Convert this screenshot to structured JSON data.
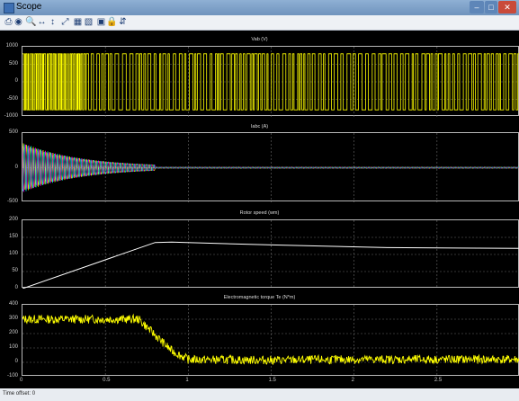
{
  "window": {
    "title": "Scope"
  },
  "toolbar": {
    "icons": [
      "print-icon",
      "parameters-icon",
      "zoom-in-icon",
      "zoom-x-icon",
      "zoom-y-icon",
      "autoscale-icon",
      "save-axes-icon",
      "restore-axes-icon",
      "floating-scope-icon",
      "lock-icon",
      "signal-selector-icon"
    ],
    "glyphs": [
      "⎙",
      "◉",
      "🔍",
      "↔",
      "↕",
      "⤢",
      "▦",
      "▧",
      "▣",
      "🔒",
      "⇵"
    ]
  },
  "status": {
    "time_offset_label": "Time offset:",
    "time_offset_value": "0"
  },
  "chart_data": [
    {
      "type": "line",
      "title": "Vab (V)",
      "ylim": [
        -1000,
        1000
      ],
      "yticks": [
        "1000",
        "500",
        "0",
        "-500",
        "-1000"
      ],
      "x_range": [
        0,
        3
      ],
      "grid": true,
      "series": [
        {
          "values": "PWM square wave switching between -800 and 800 over the full time range",
          "color": "#ffff00"
        }
      ]
    },
    {
      "type": "line",
      "title": "Iabc (A)",
      "ylim": [
        -500,
        500
      ],
      "yticks": [
        "500",
        "0",
        "-500"
      ],
      "x_range": [
        0,
        3
      ],
      "grid": true,
      "series": [
        {
          "color": "#ffff00",
          "phase": 0
        },
        {
          "color": "#ff00ff",
          "phase": 2.094
        },
        {
          "color": "#00ffff",
          "phase": 4.189
        }
      ],
      "envelope": [
        [
          0,
          350
        ],
        [
          0.8,
          10
        ],
        [
          3,
          10
        ]
      ]
    },
    {
      "type": "line",
      "title": "Rotor speed (wm)",
      "ylim": [
        0,
        200
      ],
      "yticks": [
        "200",
        "150",
        "100",
        "50",
        "0"
      ],
      "x_range": [
        0,
        3
      ],
      "grid": true,
      "series": [
        {
          "color": "#ffffff",
          "x": [
            0,
            0.8,
            0.9,
            1.5,
            2.2,
            3.0
          ],
          "y": [
            0,
            135,
            136,
            128,
            120,
            118
          ]
        }
      ]
    },
    {
      "type": "line",
      "title": "Electromagnetic torque Te (N*m)",
      "ylim": [
        -100,
        400
      ],
      "yticks": [
        "400",
        "300",
        "200",
        "100",
        "0",
        "-100"
      ],
      "xticks": [
        "0",
        "0.5",
        "1",
        "1.5",
        "2",
        "2.5"
      ],
      "x_range": [
        0,
        3
      ],
      "grid": true,
      "series": [
        {
          "color": "#ffff00",
          "x": [
            0,
            0.7,
            0.9,
            1.0,
            1.5,
            2.0,
            3.0
          ],
          "y": [
            300,
            300,
            80,
            20,
            15,
            20,
            20
          ],
          "noise": 30
        }
      ]
    }
  ]
}
